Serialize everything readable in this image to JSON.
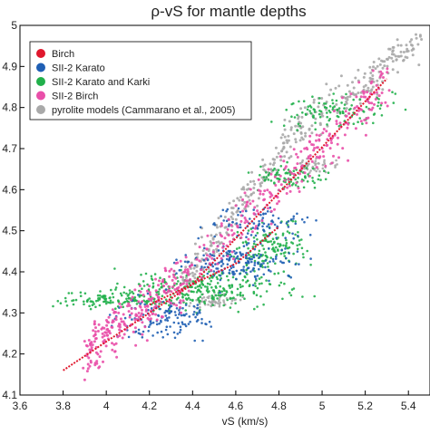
{
  "chart_data": {
    "type": "scatter",
    "title": "ρ-vS for mantle depths",
    "xlabel": "vS (km/s)",
    "ylabel": "",
    "xlim": [
      3.6,
      5.5
    ],
    "ylim": [
      4.1,
      5.0
    ],
    "x_ticks": [
      "3.6",
      "3.8",
      "4",
      "4.2",
      "4.4",
      "4.6",
      "4.8",
      "5",
      "5.2",
      "5.4"
    ],
    "y_ticks": [
      "4.1",
      "4.2",
      "4.3",
      "4.4",
      "4.5",
      "4.6",
      "4.7",
      "4.8",
      "4.9",
      "5"
    ],
    "legend_position": "top-left",
    "grid": false,
    "series": [
      {
        "name": "Birch",
        "color": "#e0182d",
        "trends": [
          {
            "x": [
              3.8,
              4.4,
              5.3
            ],
            "y": [
              4.16,
              4.37,
              4.87
            ]
          },
          {
            "x": [
              4.2,
              4.6,
              4.8
            ],
            "y": [
              4.32,
              4.42,
              4.51
            ]
          }
        ]
      },
      {
        "name": "SII-2 Karato",
        "color": "#1f5fb4",
        "clusters": [
          {
            "x": 4.28,
            "y": 4.29,
            "sx": 0.1,
            "sy": 0.025,
            "n": 140
          },
          {
            "x": 4.62,
            "y": 4.42,
            "sx": 0.12,
            "sy": 0.02,
            "n": 170
          },
          {
            "x": 4.72,
            "y": 4.52,
            "sx": 0.12,
            "sy": 0.02,
            "n": 90
          }
        ]
      },
      {
        "name": "SII-2 Karato and Karki",
        "color": "#21b04b",
        "clusters": [
          {
            "x": 4.05,
            "y": 4.33,
            "sx": 0.14,
            "sy": 0.01,
            "n": 120
          },
          {
            "x": 4.45,
            "y": 4.36,
            "sx": 0.18,
            "sy": 0.02,
            "n": 260
          },
          {
            "x": 4.75,
            "y": 4.46,
            "sx": 0.08,
            "sy": 0.03,
            "n": 150
          },
          {
            "x": 4.85,
            "y": 4.63,
            "sx": 0.08,
            "sy": 0.015,
            "n": 90
          },
          {
            "x": 5.05,
            "y": 4.79,
            "sx": 0.12,
            "sy": 0.02,
            "n": 110
          }
        ]
      },
      {
        "name": "SII-2 Birch",
        "color": "#e94fa9",
        "trends": [
          {
            "x": [
              3.9,
              4.4,
              5.3
            ],
            "y": [
              4.2,
              4.4,
              4.86
            ],
            "spread": 0.03,
            "n": 520
          }
        ]
      },
      {
        "name": "pyrolite models (Cammarano et al., 2005)",
        "color": "#a9a9a9",
        "trends": [
          {
            "x": [
              4.35,
              4.6,
              4.9,
              5.2,
              5.45
            ],
            "y": [
              4.37,
              4.55,
              4.75,
              4.85,
              4.97
            ],
            "spread": 0.025,
            "n": 360
          }
        ],
        "clusters": [
          {
            "x": 4.5,
            "y": 4.33,
            "sx": 0.06,
            "sy": 0.008,
            "n": 60
          },
          {
            "x": 4.95,
            "y": 4.66,
            "sx": 0.06,
            "sy": 0.01,
            "n": 50
          }
        ]
      }
    ]
  }
}
